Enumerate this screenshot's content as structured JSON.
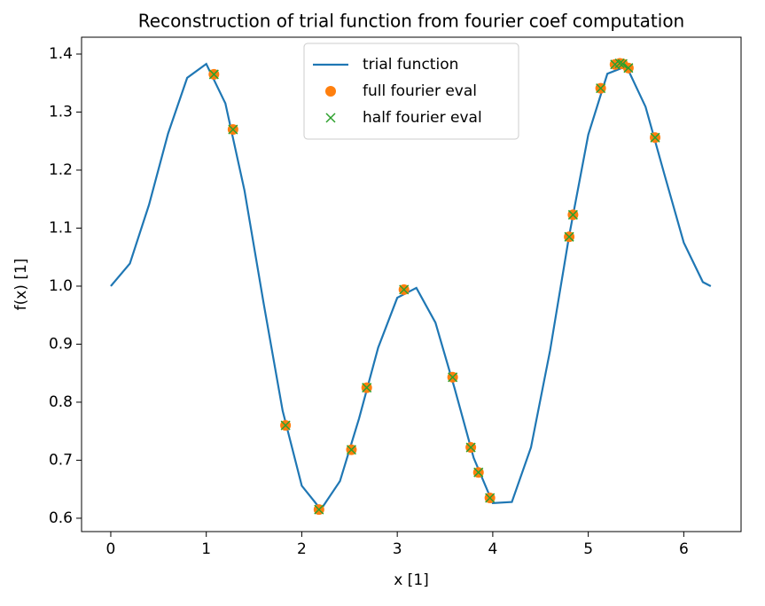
{
  "chart_data": {
    "type": "line",
    "title": "Reconstruction of trial function from fourier coef computation",
    "xlabel": "x [1]",
    "ylabel": "f(x) [1]",
    "xlim": [
      -0.306,
      6.6
    ],
    "ylim": [
      0.577,
      1.429
    ],
    "xticks": [
      0,
      1,
      2,
      3,
      4,
      5,
      6
    ],
    "yticks": [
      0.6,
      0.7,
      0.8,
      0.9,
      {
        "value": 1,
        "label": "1.0"
      },
      1.1,
      1.2,
      1.3,
      1.4
    ],
    "legend": "upper center",
    "series": [
      {
        "name": "trial function",
        "color": "#1f77b4",
        "marker": "line",
        "x": [
          0,
          0.2,
          0.4,
          0.6,
          0.8,
          1.0,
          1.2,
          1.4,
          1.6,
          1.8,
          2.0,
          2.2,
          2.4,
          2.6,
          2.8,
          3.0,
          3.2,
          3.4,
          3.6,
          3.8,
          4.0,
          4.2,
          4.4,
          4.6,
          4.8,
          5.0,
          5.2,
          5.4,
          5.6,
          5.8,
          6.0,
          6.2,
          6.283
        ],
        "values": [
          1.0,
          1.039,
          1.14,
          1.263,
          1.359,
          1.383,
          1.315,
          1.165,
          0.971,
          0.785,
          0.656,
          0.615,
          0.664,
          0.772,
          0.894,
          0.98,
          0.997,
          0.937,
          0.824,
          0.704,
          0.626,
          0.628,
          0.722,
          0.889,
          1.087,
          1.261,
          1.366,
          1.379,
          1.309,
          1.191,
          1.075,
          1.007,
          1.0
        ]
      },
      {
        "name": "full fourier eval",
        "color": "#ff7f0e",
        "marker": "o",
        "x": [
          1.08,
          1.28,
          1.83,
          2.18,
          2.52,
          2.68,
          3.07,
          3.58,
          3.77,
          3.85,
          3.97,
          4.8,
          4.84,
          5.13,
          5.28,
          5.33,
          5.36,
          5.42,
          5.7
        ],
        "values": [
          1.365,
          1.27,
          0.76,
          0.615,
          0.718,
          0.825,
          0.994,
          0.843,
          0.722,
          0.679,
          0.635,
          1.085,
          1.123,
          1.341,
          1.382,
          1.384,
          1.383,
          1.376,
          1.256
        ]
      },
      {
        "name": "half fourier eval",
        "color": "#2ca02c",
        "marker": "x",
        "x": [
          1.08,
          1.28,
          1.83,
          2.18,
          2.52,
          2.68,
          3.07,
          3.58,
          3.77,
          3.85,
          3.97,
          4.8,
          4.84,
          5.13,
          5.28,
          5.33,
          5.36,
          5.42,
          5.7
        ],
        "values": [
          1.365,
          1.27,
          0.76,
          0.615,
          0.718,
          0.825,
          0.994,
          0.843,
          0.722,
          0.679,
          0.635,
          1.085,
          1.123,
          1.341,
          1.382,
          1.384,
          1.383,
          1.376,
          1.256
        ]
      }
    ]
  }
}
